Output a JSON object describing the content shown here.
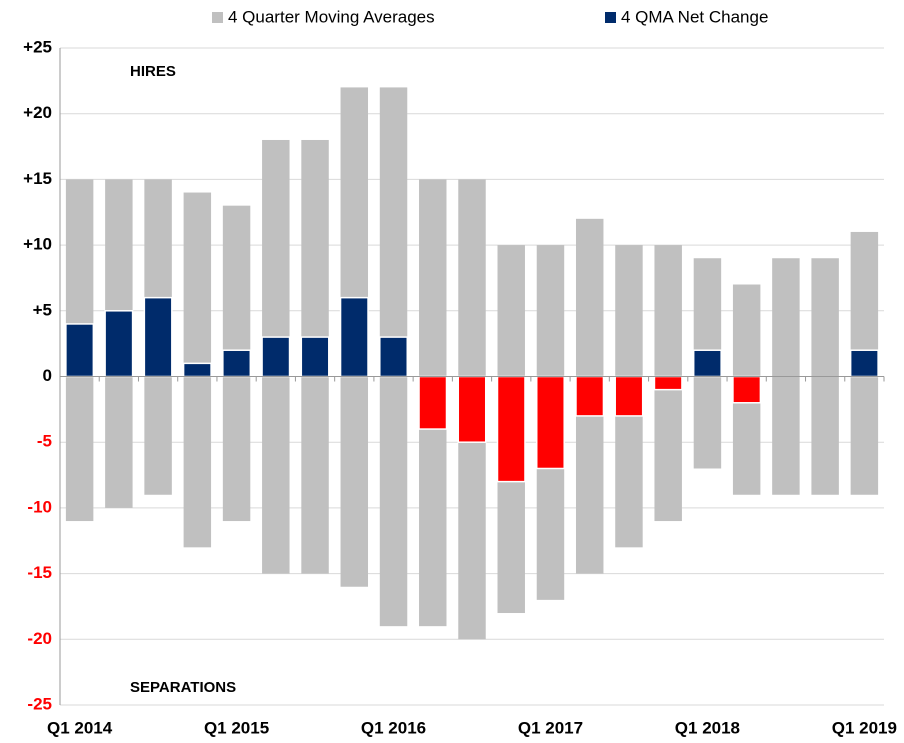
{
  "chart_data": {
    "type": "bar",
    "annotations": [
      "HIRES",
      "SEPARATIONS"
    ],
    "categories": [
      "Q1 2014",
      null,
      null,
      null,
      "Q1 2015",
      null,
      null,
      null,
      "Q1 2016",
      null,
      null,
      null,
      "Q1 2017",
      null,
      null,
      null,
      "Q1 2018",
      null,
      null,
      null,
      "Q1 2019"
    ],
    "series": [
      {
        "name": "4 Quarter Moving Averages",
        "color": "#c0c0c0",
        "values": [
          15,
          15,
          15,
          14,
          13,
          18,
          18,
          22,
          22,
          15,
          15,
          10,
          10,
          12,
          10,
          10,
          9,
          7,
          9,
          9,
          11
        ],
        "separations": [
          -11,
          -10,
          -9,
          -13,
          -11,
          -15,
          -15,
          -16,
          -19,
          -19,
          -20,
          -18,
          -17,
          -15,
          -13,
          -11,
          -7,
          -9,
          -9,
          -9,
          -9
        ]
      },
      {
        "name": "4 QMA Net Change",
        "color": "#002b6b",
        "negative_color": "#ff0000",
        "values": [
          4,
          5,
          6,
          1,
          2,
          3,
          3,
          6,
          3,
          -4,
          -5,
          -8,
          -7,
          -3,
          -3,
          -1,
          2,
          -2,
          0,
          0,
          2
        ]
      }
    ],
    "ylim": [
      -25,
      25
    ],
    "yticks": [
      {
        "value": 25,
        "label": "+25"
      },
      {
        "value": 20,
        "label": "+20"
      },
      {
        "value": 15,
        "label": "+15"
      },
      {
        "value": 10,
        "label": "+10"
      },
      {
        "value": 5,
        "label": "+5"
      },
      0,
      -5,
      -10,
      -15,
      -20,
      -25
    ],
    "negative_tick_color": "#ff0000",
    "grid": true
  }
}
